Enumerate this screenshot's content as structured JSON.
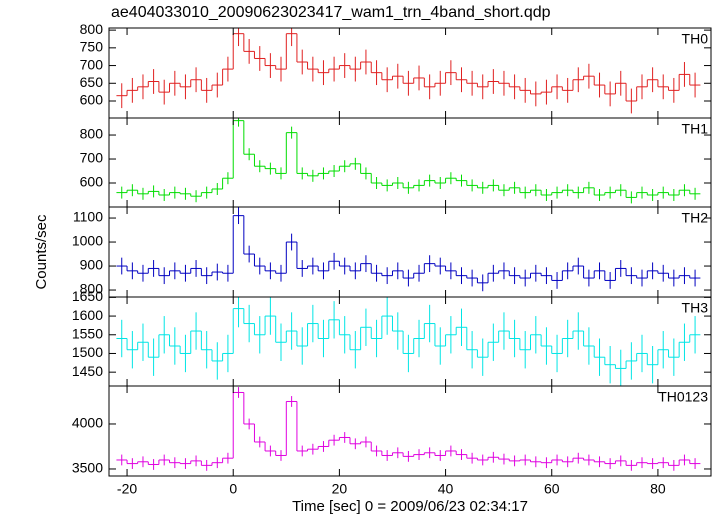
{
  "chart_data": [
    {
      "type": "step",
      "title": "ae404033010_20090623023417_wam1_trn_4band_short.qdp",
      "x": [
        -21,
        -19,
        -17,
        -15,
        -13,
        -11,
        -9,
        -7,
        -5,
        -3,
        -1,
        1,
        3,
        5,
        7,
        9,
        11,
        13,
        15,
        17,
        19,
        21,
        23,
        25,
        27,
        29,
        31,
        33,
        35,
        37,
        39,
        41,
        43,
        45,
        47,
        49,
        51,
        53,
        55,
        57,
        59,
        61,
        63,
        65,
        67,
        69,
        71,
        73,
        75,
        77,
        79,
        81,
        83,
        85,
        87
      ],
      "series": [
        {
          "name": "TH0",
          "color": "#e02020",
          "error": 35,
          "values": [
            615,
            630,
            640,
            655,
            625,
            650,
            640,
            660,
            630,
            645,
            690,
            790,
            740,
            720,
            700,
            690,
            790,
            710,
            690,
            680,
            690,
            700,
            690,
            710,
            680,
            660,
            670,
            650,
            665,
            640,
            650,
            680,
            660,
            650,
            640,
            655,
            650,
            640,
            630,
            620,
            625,
            640,
            630,
            660,
            670,
            645,
            620,
            650,
            600,
            640,
            660,
            640,
            630,
            675,
            645
          ]
        }
      ],
      "xlim": [
        -23.4,
        90
      ],
      "ylim": [
        552,
        806
      ],
      "yticks": [
        600,
        650,
        700,
        750,
        800
      ]
    },
    {
      "type": "step",
      "x": [
        -21,
        -19,
        -17,
        -15,
        -13,
        -11,
        -9,
        -7,
        -5,
        -3,
        -1,
        1,
        3,
        5,
        7,
        9,
        11,
        13,
        15,
        17,
        19,
        21,
        23,
        25,
        27,
        29,
        31,
        33,
        35,
        37,
        39,
        41,
        43,
        45,
        47,
        49,
        51,
        53,
        55,
        57,
        59,
        61,
        63,
        65,
        67,
        69,
        71,
        73,
        75,
        77,
        79,
        81,
        83,
        85,
        87
      ],
      "series": [
        {
          "name": "TH1",
          "color": "#00dd00",
          "error": 25,
          "values": [
            560,
            570,
            555,
            565,
            550,
            560,
            555,
            545,
            560,
            575,
            620,
            860,
            720,
            670,
            660,
            640,
            810,
            640,
            630,
            640,
            650,
            670,
            680,
            640,
            600,
            590,
            600,
            580,
            590,
            610,
            600,
            620,
            610,
            590,
            580,
            590,
            570,
            580,
            560,
            570,
            550,
            560,
            570,
            560,
            580,
            550,
            560,
            570,
            540,
            560,
            550,
            560,
            550,
            570,
            555
          ]
        }
      ],
      "xlim": [
        -23.4,
        90
      ],
      "ylim": [
        500,
        871
      ],
      "yticks": [
        600,
        700,
        800
      ]
    },
    {
      "type": "step",
      "ylabel": "Counts/sec",
      "x": [
        -21,
        -19,
        -17,
        -15,
        -13,
        -11,
        -9,
        -7,
        -5,
        -3,
        -1,
        1,
        3,
        5,
        7,
        9,
        11,
        13,
        15,
        17,
        19,
        21,
        23,
        25,
        27,
        29,
        31,
        33,
        35,
        37,
        39,
        41,
        43,
        45,
        47,
        49,
        51,
        53,
        55,
        57,
        59,
        61,
        63,
        65,
        67,
        69,
        71,
        73,
        75,
        77,
        79,
        81,
        83,
        85,
        87
      ],
      "series": [
        {
          "name": "TH2",
          "color": "#0000c0",
          "error": 35,
          "values": [
            900,
            880,
            870,
            890,
            860,
            880,
            870,
            890,
            860,
            875,
            870,
            1110,
            950,
            900,
            880,
            870,
            1000,
            890,
            900,
            880,
            920,
            900,
            880,
            910,
            870,
            860,
            880,
            850,
            870,
            910,
            900,
            880,
            860,
            850,
            830,
            870,
            880,
            860,
            850,
            870,
            860,
            840,
            880,
            900,
            850,
            880,
            840,
            890,
            860,
            850,
            880,
            870,
            850,
            860,
            850
          ]
        }
      ],
      "xlim": [
        -23.4,
        90
      ],
      "ylim": [
        771,
        1146
      ],
      "yticks": [
        800,
        900,
        1000,
        1100
      ]
    },
    {
      "type": "step",
      "x": [
        -21,
        -19,
        -17,
        -15,
        -13,
        -11,
        -9,
        -7,
        -5,
        -3,
        -1,
        1,
        3,
        5,
        7,
        9,
        11,
        13,
        15,
        17,
        19,
        21,
        23,
        25,
        27,
        29,
        31,
        33,
        35,
        37,
        39,
        41,
        43,
        45,
        47,
        49,
        51,
        53,
        55,
        57,
        59,
        61,
        63,
        65,
        67,
        69,
        71,
        73,
        75,
        77,
        79,
        81,
        83,
        85,
        87
      ],
      "series": [
        {
          "name": "TH3",
          "color": "#00e5e5",
          "error": 50,
          "values": [
            1540,
            1510,
            1530,
            1490,
            1550,
            1520,
            1500,
            1560,
            1510,
            1480,
            1500,
            1620,
            1580,
            1550,
            1600,
            1530,
            1560,
            1520,
            1580,
            1540,
            1590,
            1550,
            1510,
            1570,
            1540,
            1600,
            1560,
            1500,
            1540,
            1580,
            1520,
            1550,
            1570,
            1510,
            1490,
            1530,
            1560,
            1540,
            1510,
            1550,
            1520,
            1500,
            1540,
            1560,
            1520,
            1490,
            1470,
            1460,
            1480,
            1500,
            1470,
            1510,
            1490,
            1530,
            1550
          ]
        }
      ],
      "xlim": [
        -23.4,
        90
      ],
      "ylim": [
        1413,
        1651
      ],
      "yticks": [
        1450,
        1500,
        1550,
        1600,
        1650
      ]
    },
    {
      "type": "step",
      "xlabel": "Time [sec] 0 = 2009/06/23 02:34:17",
      "x": [
        -21,
        -19,
        -17,
        -15,
        -13,
        -11,
        -9,
        -7,
        -5,
        -3,
        -1,
        1,
        3,
        5,
        7,
        9,
        11,
        13,
        15,
        17,
        19,
        21,
        23,
        25,
        27,
        29,
        31,
        33,
        35,
        37,
        39,
        41,
        43,
        45,
        47,
        49,
        51,
        53,
        55,
        57,
        59,
        61,
        63,
        65,
        67,
        69,
        71,
        73,
        75,
        77,
        79,
        81,
        83,
        85,
        87
      ],
      "series": [
        {
          "name": "TH0123",
          "color": "#e000e0",
          "error": 60,
          "values": [
            3600,
            3560,
            3580,
            3550,
            3600,
            3570,
            3560,
            3590,
            3540,
            3570,
            3620,
            4350,
            4000,
            3800,
            3700,
            3650,
            4250,
            3700,
            3720,
            3750,
            3820,
            3850,
            3780,
            3800,
            3700,
            3650,
            3680,
            3640,
            3660,
            3680,
            3650,
            3700,
            3660,
            3620,
            3600,
            3630,
            3610,
            3590,
            3600,
            3580,
            3570,
            3600,
            3580,
            3620,
            3600,
            3580,
            3560,
            3590,
            3540,
            3570,
            3560,
            3570,
            3540,
            3600,
            3560
          ]
        }
      ],
      "xlim": [
        -23.4,
        90
      ],
      "ylim": [
        3422,
        4422
      ],
      "yticks": [
        3500,
        4000
      ],
      "xticks": [
        -20,
        0,
        20,
        40,
        60,
        80
      ]
    }
  ]
}
